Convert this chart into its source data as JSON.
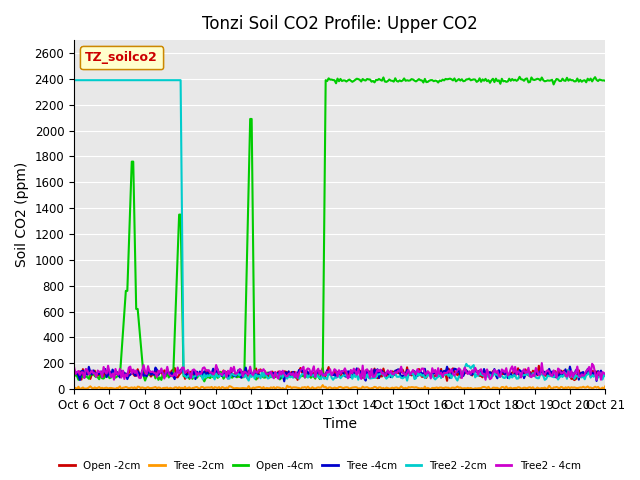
{
  "title": "Tonzi Soil CO2 Profile: Upper CO2",
  "xlabel": "Time",
  "ylabel": "Soil CO2 (ppm)",
  "ylim": [
    0,
    2700
  ],
  "yticks": [
    0,
    200,
    400,
    600,
    800,
    1000,
    1200,
    1400,
    1600,
    1800,
    2000,
    2200,
    2400,
    2600
  ],
  "x_tick_labels": [
    "Oct 6",
    "Oct 7",
    "Oct 8",
    "Oct 9",
    "Oct 10",
    "Oct 11",
    "Oct 12",
    "Oct 13",
    "Oct 14",
    "Oct 15",
    "Oct 16",
    "Oct 17",
    "Oct 18",
    "Oct 19",
    "Oct 20",
    "Oct 21"
  ],
  "legend_label": "TZ_soilco2",
  "series": {
    "Open_2cm": {
      "color": "#cc0000",
      "label": "Open -2cm",
      "linewidth": 1.5
    },
    "Tree_2cm": {
      "color": "#ff9900",
      "label": "Tree -2cm",
      "linewidth": 1.5
    },
    "Open_4cm": {
      "color": "#00cc00",
      "label": "Open -4cm",
      "linewidth": 1.5
    },
    "Tree_4cm": {
      "color": "#0000cc",
      "label": "Tree -4cm",
      "linewidth": 1.5
    },
    "Tree2_2cm": {
      "color": "#00cccc",
      "label": "Tree2 -2cm",
      "linewidth": 1.5
    },
    "Tree2_4cm": {
      "color": "#cc00cc",
      "label": "Tree2 - 4cm",
      "linewidth": 1.5
    }
  },
  "bg_color": "#e8e8e8",
  "grid_color": "#ffffff",
  "title_fontsize": 12,
  "axis_fontsize": 10,
  "tick_fontsize": 8.5
}
